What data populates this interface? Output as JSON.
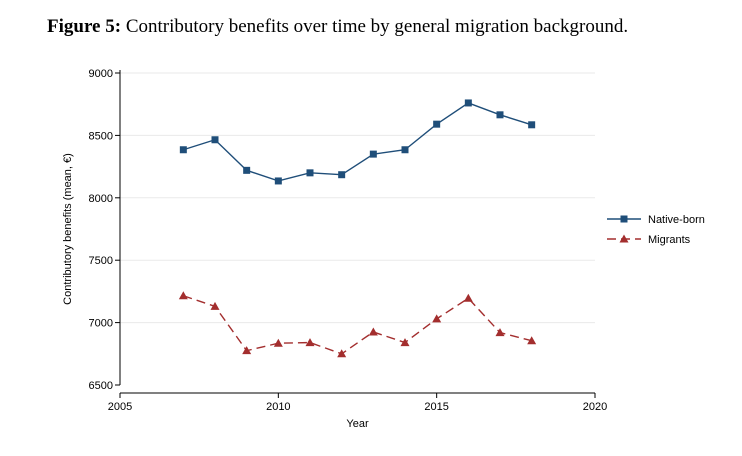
{
  "figure": {
    "label": "Figure 5:",
    "caption": " Contributory benefits over time by general migration background."
  },
  "chart_data": {
    "type": "line",
    "title": "",
    "xlabel": "Year",
    "ylabel": "Contributory benefits (mean, €)",
    "xlim": [
      2005,
      2020
    ],
    "ylim": [
      6500,
      9000
    ],
    "xticks": [
      2005,
      2010,
      2015,
      2020
    ],
    "yticks": [
      6500,
      7000,
      7500,
      8000,
      8500,
      9000
    ],
    "grid": true,
    "legend_position": "right",
    "x": [
      2007,
      2008,
      2009,
      2010,
      2011,
      2012,
      2013,
      2014,
      2015,
      2016,
      2017,
      2018
    ],
    "series": [
      {
        "name": "Native-born",
        "color": "#1f4e79",
        "marker": "square",
        "line_style": "solid",
        "values": [
          8385,
          8465,
          8220,
          8135,
          8200,
          8185,
          8350,
          8385,
          8590,
          8760,
          8665,
          8585
        ]
      },
      {
        "name": "Migrants",
        "color": "#a32e2e",
        "marker": "triangle",
        "line_style": "dashed",
        "values": [
          7215,
          7130,
          6775,
          6835,
          6840,
          6750,
          6925,
          6840,
          7030,
          7195,
          6920,
          6855
        ]
      }
    ]
  }
}
